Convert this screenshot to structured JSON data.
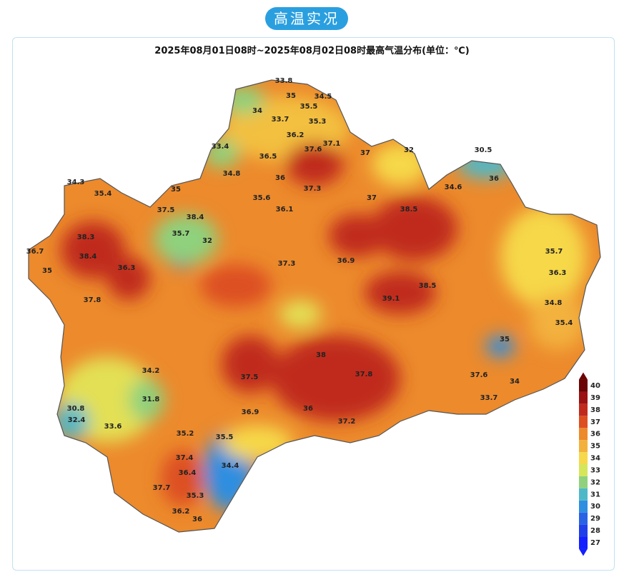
{
  "header": {
    "badge": "高温实况",
    "title": "2025年08月01日08时~2025年08月02日08时最高气温分布(单位：℃)"
  },
  "stations": [
    33.8,
    35.0,
    34.5,
    35.5,
    34.0,
    33.7,
    35.3,
    36.2,
    33.4,
    37.6,
    37.1,
    36.5,
    37.0,
    32.0,
    30.5,
    34.8,
    36.0,
    35.0,
    34.3,
    35.4,
    36.0,
    34.6,
    35.6,
    37.3,
    37.0,
    36.1,
    38.5,
    37.5,
    38.4,
    35.7,
    32.0,
    38.3,
    38.4,
    36.3,
    37.3,
    36.9,
    38.5,
    35.7,
    36.3,
    34.8,
    35.4,
    35.0,
    37.6,
    34.0,
    33.7,
    37.5,
    39.1,
    38.0,
    37.8,
    37.2,
    36.0,
    34.2,
    31.8,
    33.6,
    30.8,
    32.4,
    35.5,
    34.4,
    37.4,
    36.4,
    35.3,
    37.7,
    36.2,
    36.0,
    36.9,
    35.2,
    37.8,
    35.0,
    36.7
  ],
  "legend": {
    "ticks": [
      27,
      28,
      29,
      30,
      31,
      32,
      33,
      34,
      35,
      36,
      37,
      38,
      39,
      40
    ],
    "colors": [
      "#1420ff",
      "#1f40e8",
      "#2a62e6",
      "#2f8ee0",
      "#4fb8c8",
      "#8fd17d",
      "#d5e65a",
      "#f6d84a",
      "#f3b13c",
      "#ec8a2c",
      "#dd4f20",
      "#c02a1c",
      "#9a1212",
      "#6b0505"
    ]
  }
}
